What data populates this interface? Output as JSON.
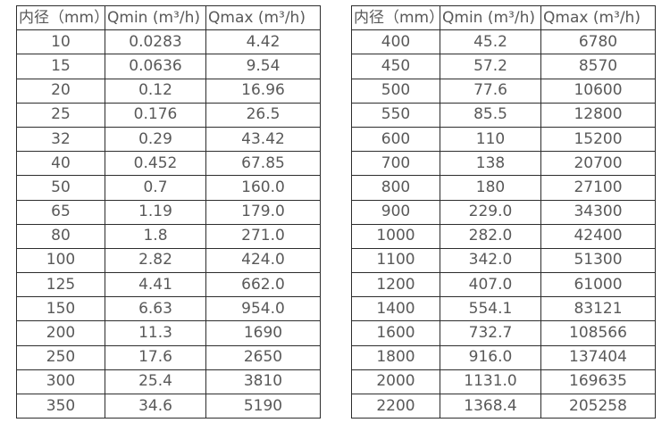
{
  "style": {
    "border_color": "#2d2d2d",
    "text_color": "#595959",
    "background_color": "#ffffff"
  },
  "chart_data": [
    {
      "type": "table",
      "name": "flow-spec-table-small-diameters",
      "headers": [
        "内径（mm）",
        "Qmin (m³/h)",
        "Qmax (m³/h)"
      ],
      "rows": [
        [
          "10",
          "0.0283",
          "4.42"
        ],
        [
          "15",
          "0.0636",
          "9.54"
        ],
        [
          "20",
          "0.12",
          "16.96"
        ],
        [
          "25",
          "0.176",
          "26.5"
        ],
        [
          "32",
          "0.29",
          "43.42"
        ],
        [
          "40",
          "0.452",
          "67.85"
        ],
        [
          "50",
          "0.7",
          "160.0"
        ],
        [
          "65",
          "1.19",
          "179.0"
        ],
        [
          "80",
          "1.8",
          "271.0"
        ],
        [
          "100",
          "2.82",
          "424.0"
        ],
        [
          "125",
          "4.41",
          "662.0"
        ],
        [
          "150",
          "6.63",
          "954.0"
        ],
        [
          "200",
          "11.3",
          "1690"
        ],
        [
          "250",
          "17.6",
          "2650"
        ],
        [
          "300",
          "25.4",
          "3810"
        ],
        [
          "350",
          "34.6",
          "5190"
        ]
      ]
    },
    {
      "type": "table",
      "name": "flow-spec-table-large-diameters",
      "headers": [
        "内径（mm）",
        "Qmin (m³/h)",
        "Qmax (m³/h)"
      ],
      "rows": [
        [
          "400",
          "45.2",
          "6780"
        ],
        [
          "450",
          "57.2",
          "8570"
        ],
        [
          "500",
          "77.6",
          "10600"
        ],
        [
          "550",
          "85.5",
          "12800"
        ],
        [
          "600",
          "110",
          "15200"
        ],
        [
          "700",
          "138",
          "20700"
        ],
        [
          "800",
          "180",
          "27100"
        ],
        [
          "900",
          "229.0",
          "34300"
        ],
        [
          "1000",
          "282.0",
          "42400"
        ],
        [
          "1100",
          "342.0",
          "51300"
        ],
        [
          "1200",
          "407.0",
          "61000"
        ],
        [
          "1400",
          "554.1",
          "83121"
        ],
        [
          "1600",
          "732.7",
          "108566"
        ],
        [
          "1800",
          "916.0",
          "137404"
        ],
        [
          "2000",
          "1131.0",
          "169635"
        ],
        [
          "2200",
          "1368.4",
          "205258"
        ]
      ]
    }
  ]
}
